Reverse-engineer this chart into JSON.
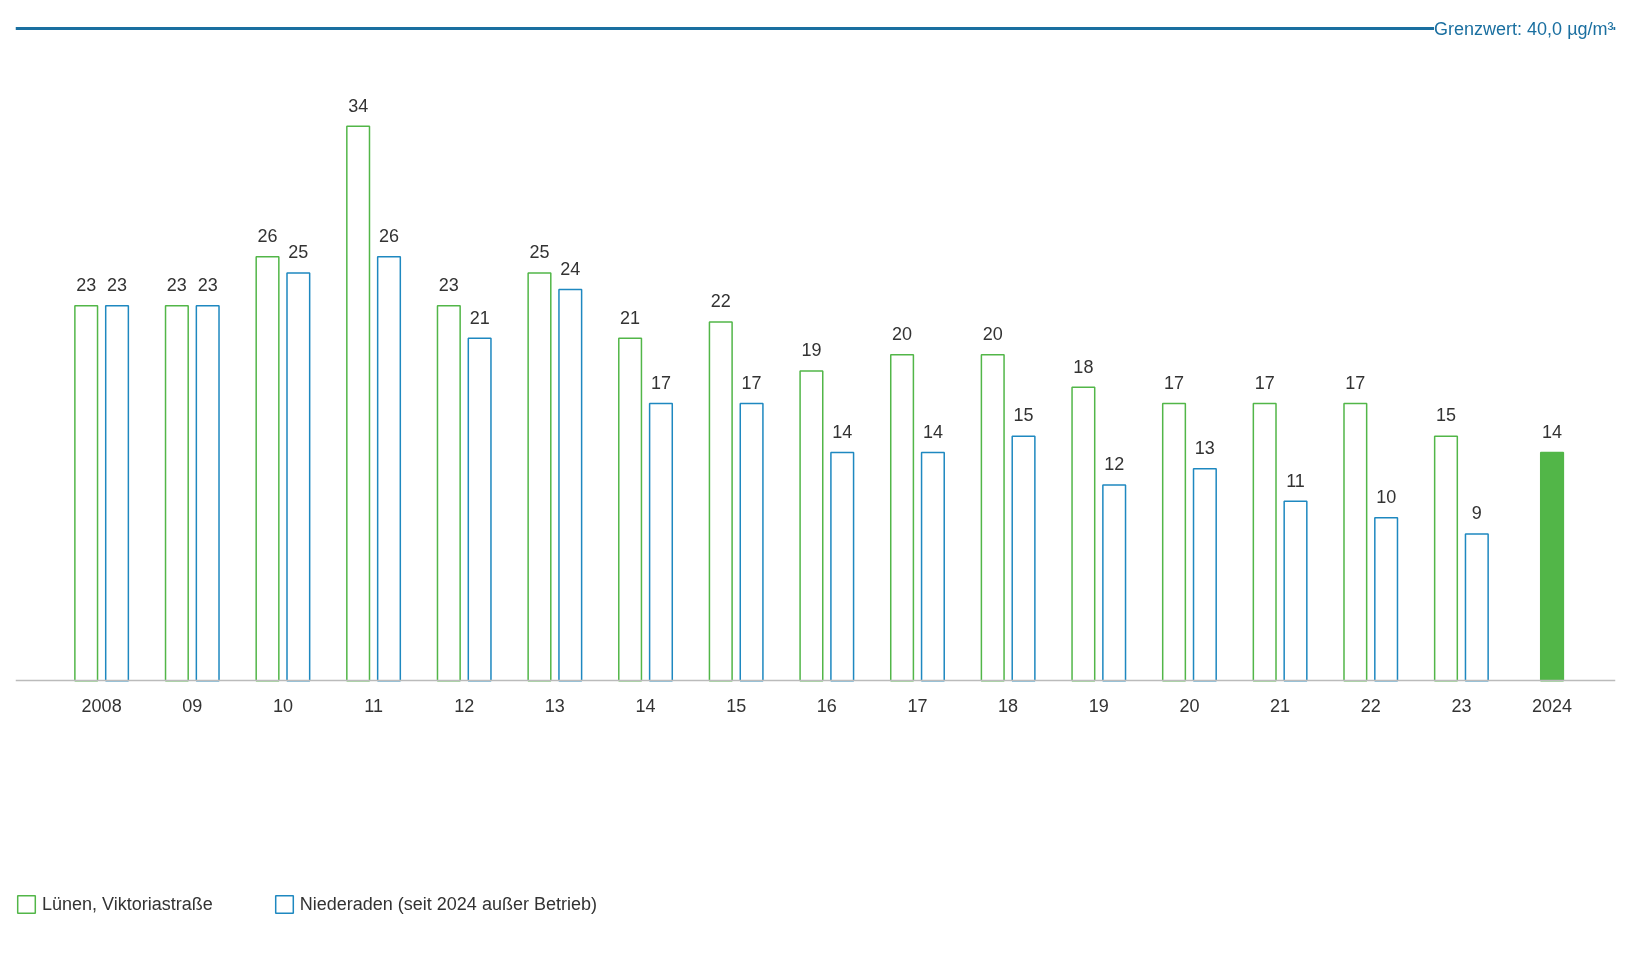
{
  "chart_data": {
    "type": "bar",
    "categories": [
      "2008",
      "09",
      "10",
      "11",
      "12",
      "13",
      "14",
      "15",
      "16",
      "17",
      "18",
      "19",
      "20",
      "21",
      "22",
      "23",
      "2024"
    ],
    "series": [
      {
        "name": "Lünen, Viktoriastraße",
        "color": "#52b648",
        "values": [
          23,
          23,
          26,
          34,
          23,
          25,
          21,
          22,
          19,
          20,
          20,
          18,
          17,
          17,
          17,
          15,
          14
        ]
      },
      {
        "name": "Niederaden (seit 2024 außer Betrieb)",
        "color": "#1e88c0",
        "values": [
          23,
          23,
          25,
          26,
          21,
          24,
          17,
          17,
          14,
          14,
          15,
          12,
          13,
          11,
          10,
          9,
          null
        ]
      }
    ],
    "ylim": [
      0,
      40
    ],
    "ref_lines": [
      {
        "axis": "y",
        "value": 40,
        "label": "Grenzwert: 40,0 µg/m³",
        "color": "#1a6fa0"
      }
    ],
    "data_labels": true,
    "tick_labels": "x",
    "grid": false,
    "legend": "bottom left"
  }
}
